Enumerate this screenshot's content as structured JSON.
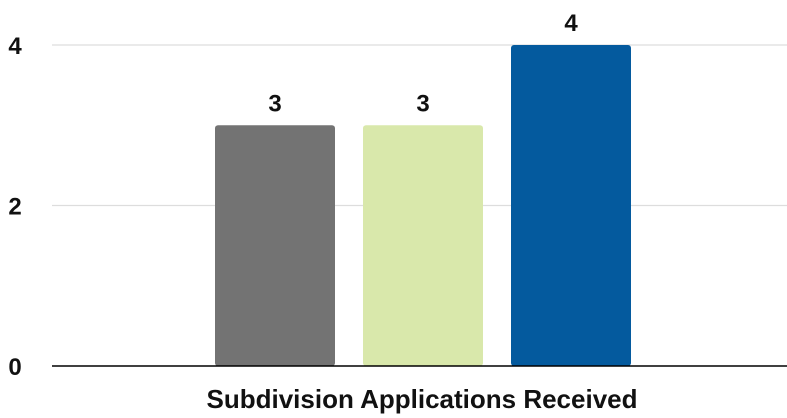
{
  "chart_data": {
    "type": "bar",
    "title": "",
    "xlabel": "Subdivision Applications Received",
    "ylabel": "",
    "ylim": [
      0,
      4
    ],
    "yticks": [
      0,
      2,
      4
    ],
    "grid": true,
    "legend": "none",
    "categories": [
      "",
      "",
      ""
    ],
    "values": [
      3,
      3,
      4
    ],
    "data_labels": [
      "3",
      "3",
      "4"
    ],
    "colors": [
      "#737373",
      "#d9e8ab",
      "#045a9e"
    ],
    "gridline_color": "#dddddd",
    "axis_color": "#000000"
  }
}
